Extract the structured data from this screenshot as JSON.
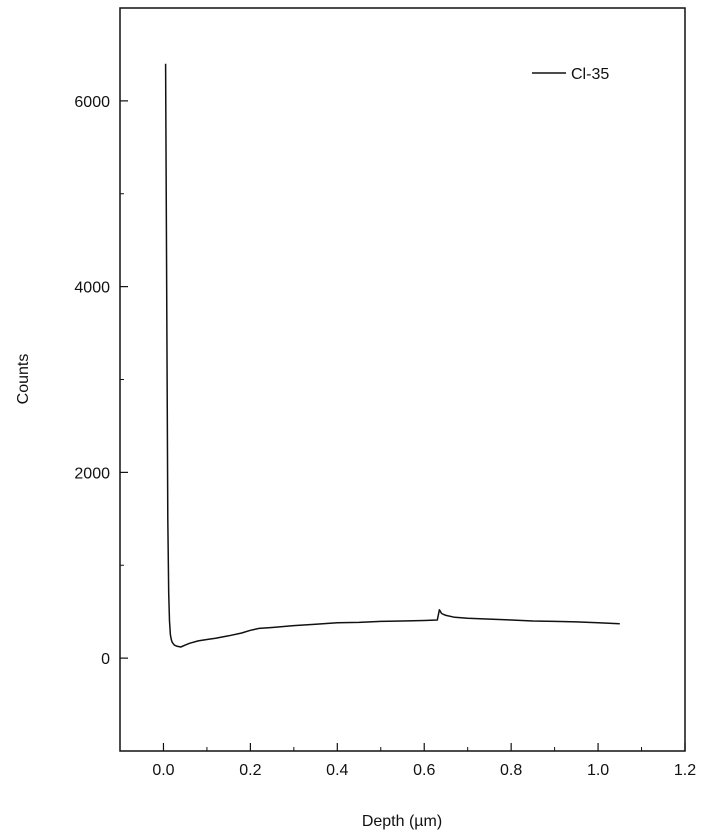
{
  "chart_data": {
    "type": "line",
    "xlabel": "Depth (µm)",
    "ylabel": "Counts",
    "xlim": [
      -0.1,
      1.2
    ],
    "ylim": [
      -1000,
      7000
    ],
    "x_ticks": [
      0.0,
      0.2,
      0.4,
      0.6,
      0.8,
      1.0,
      1.2
    ],
    "x_tick_labels": [
      "0.0",
      "0.2",
      "0.4",
      "0.6",
      "0.8",
      "1.0",
      "1.2"
    ],
    "y_ticks": [
      0,
      2000,
      4000,
      6000
    ],
    "y_tick_labels": [
      "0",
      "2000",
      "4000",
      "6000"
    ],
    "grid": false,
    "legend_position": "top-right",
    "series": [
      {
        "name": "Cl-35",
        "color": "#111111",
        "x": [
          0.005,
          0.008,
          0.01,
          0.012,
          0.014,
          0.016,
          0.018,
          0.02,
          0.025,
          0.03,
          0.04,
          0.05,
          0.06,
          0.08,
          0.1,
          0.12,
          0.15,
          0.18,
          0.2,
          0.22,
          0.25,
          0.3,
          0.35,
          0.4,
          0.45,
          0.5,
          0.55,
          0.6,
          0.63,
          0.635,
          0.64,
          0.645,
          0.65,
          0.67,
          0.7,
          0.75,
          0.8,
          0.85,
          0.9,
          0.95,
          1.0,
          1.05
        ],
        "y": [
          6400,
          3500,
          1500,
          700,
          400,
          250,
          200,
          170,
          140,
          130,
          120,
          140,
          160,
          185,
          200,
          215,
          240,
          270,
          300,
          320,
          330,
          350,
          365,
          380,
          385,
          395,
          400,
          405,
          410,
          520,
          480,
          470,
          460,
          440,
          430,
          420,
          410,
          400,
          395,
          390,
          380,
          370
        ]
      }
    ]
  }
}
